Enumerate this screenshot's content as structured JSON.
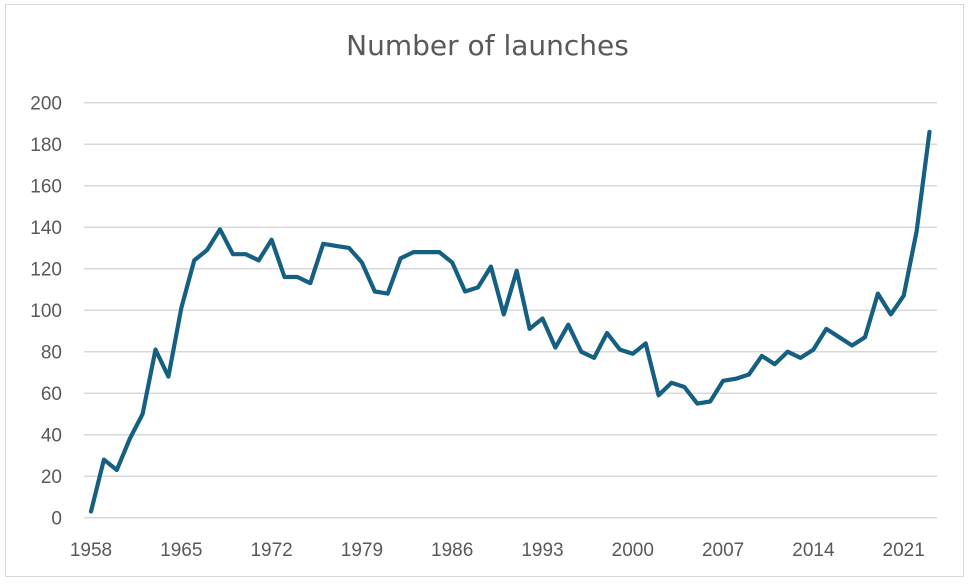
{
  "chart_data": {
    "type": "line",
    "title": "Number of launches",
    "xlabel": "",
    "ylabel": "",
    "ylim": [
      0,
      200
    ],
    "yticks": [
      0,
      20,
      40,
      60,
      80,
      100,
      120,
      140,
      160,
      180,
      200
    ],
    "xtick_labels": [
      "1958",
      "1965",
      "1972",
      "1979",
      "1986",
      "1993",
      "2000",
      "2007",
      "2014",
      "2021"
    ],
    "grid": "horizontal",
    "legend": "none",
    "line_color": "#156082",
    "x": [
      1958,
      1959,
      1960,
      1961,
      1962,
      1963,
      1964,
      1965,
      1966,
      1967,
      1968,
      1969,
      1970,
      1971,
      1972,
      1973,
      1974,
      1975,
      1976,
      1977,
      1978,
      1979,
      1980,
      1981,
      1982,
      1983,
      1984,
      1985,
      1986,
      1987,
      1988,
      1989,
      1990,
      1991,
      1992,
      1993,
      1994,
      1995,
      1996,
      1997,
      1998,
      1999,
      2000,
      2001,
      2002,
      2003,
      2004,
      2005,
      2006,
      2007,
      2008,
      2009,
      2010,
      2011,
      2012,
      2013,
      2014,
      2015,
      2016,
      2017,
      2018,
      2019,
      2020,
      2021,
      2022,
      2023
    ],
    "series": [
      {
        "name": "Number of launches",
        "values": [
          3,
          28,
          23,
          38,
          50,
          81,
          68,
          101,
          124,
          129,
          139,
          127,
          127,
          124,
          134,
          116,
          116,
          113,
          132,
          131,
          130,
          123,
          109,
          108,
          125,
          128,
          128,
          128,
          123,
          109,
          111,
          121,
          98,
          119,
          91,
          96,
          82,
          93,
          80,
          77,
          89,
          81,
          79,
          84,
          59,
          65,
          63,
          55,
          56,
          66,
          67,
          69,
          78,
          74,
          80,
          77,
          81,
          91,
          87,
          83,
          87,
          108,
          98,
          107,
          138,
          186
        ]
      }
    ]
  }
}
